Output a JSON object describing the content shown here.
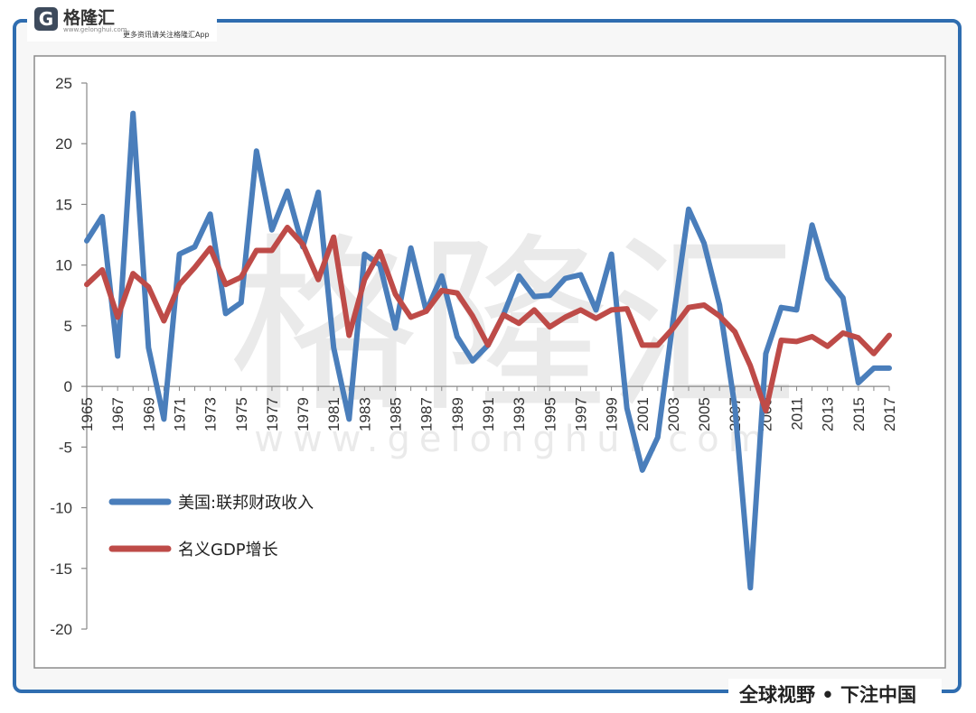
{
  "branding": {
    "logo_letter": "G",
    "logo_name": "格隆汇",
    "logo_url": "www.gelonghui.com",
    "logo_tagline": "更多资讯请关注格隆汇App",
    "watermark": "格隆汇",
    "watermark_url": "www.gelonghui.com",
    "slogan": "全球视野 • 下注中国"
  },
  "chart_data": {
    "type": "line",
    "title": "",
    "xlabel": "",
    "ylabel": "",
    "x": [
      1965,
      1966,
      1967,
      1968,
      1969,
      1970,
      1971,
      1972,
      1973,
      1974,
      1975,
      1976,
      1977,
      1978,
      1979,
      1980,
      1981,
      1982,
      1983,
      1984,
      1985,
      1986,
      1987,
      1988,
      1989,
      1990,
      1991,
      1992,
      1993,
      1994,
      1995,
      1996,
      1997,
      1998,
      1999,
      2000,
      2001,
      2002,
      2003,
      2004,
      2005,
      2006,
      2007,
      2008,
      2009,
      2010,
      2011,
      2012,
      2013,
      2014,
      2015,
      2016,
      2017
    ],
    "x_tick_labels": [
      "1965",
      "1967",
      "1969",
      "1971",
      "1973",
      "1975",
      "1977",
      "1979",
      "1981",
      "1983",
      "1985",
      "1987",
      "1989",
      "1991",
      "1993",
      "1995",
      "1997",
      "1999",
      "2001",
      "2003",
      "2005",
      "2007",
      "2009",
      "2011",
      "2013",
      "2015",
      "2017"
    ],
    "ylim": [
      -20,
      25
    ],
    "y_ticks": [
      25,
      20,
      15,
      10,
      5,
      0,
      -5,
      -10,
      -15,
      -20
    ],
    "grid": false,
    "legend_position": "lower-left",
    "series": [
      {
        "name": "美国:联邦财政收入",
        "color": "#4a7ebb",
        "values": [
          12,
          14,
          2.5,
          22.5,
          3.2,
          -2.7,
          10.9,
          11.5,
          14.2,
          6,
          6.9,
          19.4,
          12.9,
          16.1,
          11.5,
          16,
          3.2,
          -2.7,
          10.9,
          10,
          4.8,
          11.4,
          6.2,
          9.1,
          4.1,
          2.1,
          3.4,
          5.9,
          9.1,
          7.4,
          7.5,
          8.9,
          9.2,
          6.3,
          10.9,
          -1.8,
          -6.9,
          -4.2,
          5.5,
          14.6,
          11.8,
          6.7,
          -1.7,
          -16.6,
          2.7,
          6.5,
          6.3,
          13.3,
          8.9,
          7.3,
          0.3,
          1.5,
          1.5
        ]
      },
      {
        "name": "名义GDP增长",
        "color": "#be4b48",
        "values": [
          8.4,
          9.6,
          5.7,
          9.3,
          8.2,
          5.4,
          8.4,
          9.8,
          11.4,
          8.4,
          9,
          11.2,
          11.2,
          13.1,
          11.7,
          8.8,
          12.3,
          4.2,
          8.8,
          11.1,
          7.6,
          5.7,
          6.2,
          7.9,
          7.7,
          5.8,
          3.4,
          5.9,
          5.2,
          6.3,
          4.9,
          5.7,
          6.3,
          5.6,
          6.3,
          6.4,
          3.4,
          3.4,
          4.8,
          6.5,
          6.7,
          5.8,
          4.5,
          1.7,
          -2,
          3.8,
          3.7,
          4.1,
          3.3,
          4.4,
          4,
          2.7,
          4.2
        ]
      }
    ]
  }
}
